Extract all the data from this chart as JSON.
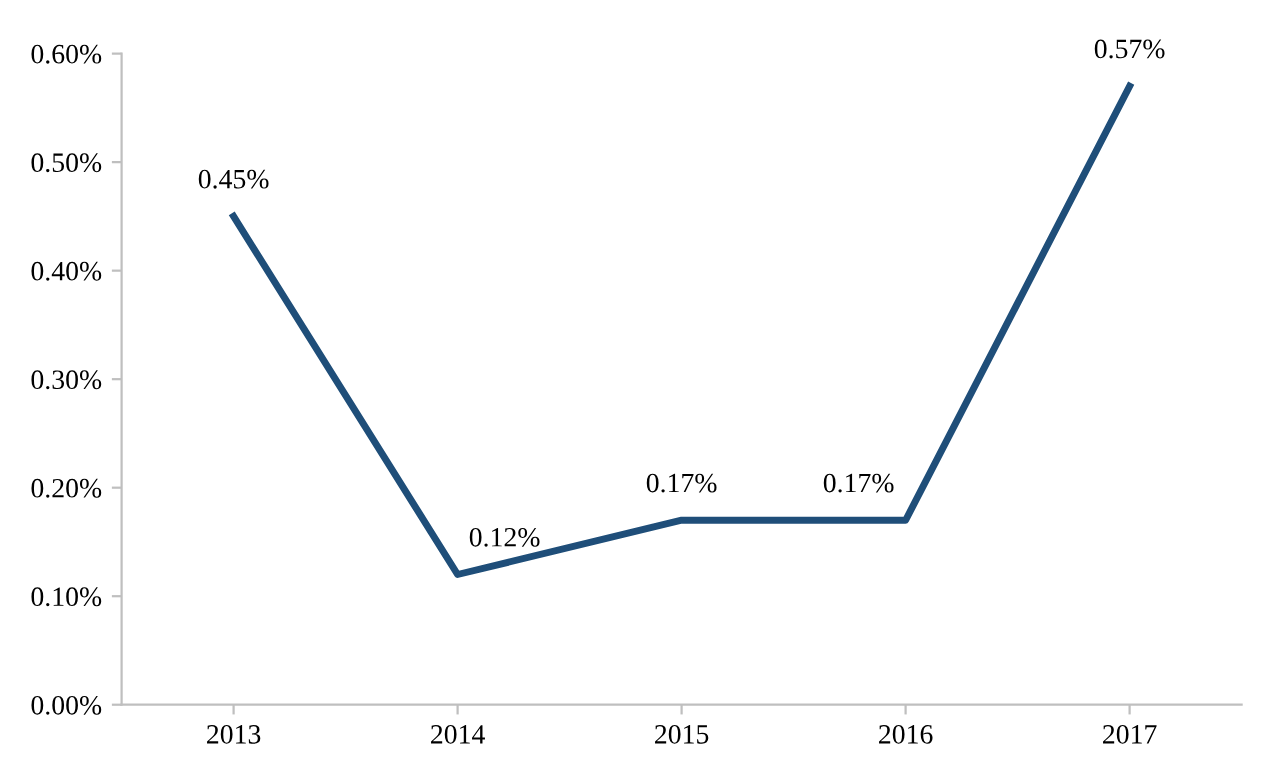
{
  "chart_data": {
    "type": "line",
    "categories": [
      "2013",
      "2014",
      "2015",
      "2016",
      "2017"
    ],
    "series": [
      {
        "color": "#1f4e79",
        "values": [
          0.45,
          0.12,
          0.17,
          0.17,
          0.57
        ],
        "value_labels": [
          "0.45%",
          "0.12%",
          "0.17%",
          "0.17%",
          "0.57%"
        ]
      }
    ],
    "ylim": [
      0,
      0.6
    ],
    "yticks": [
      {
        "value": 0,
        "label": "0.00%"
      },
      {
        "value": 0.1,
        "label": "0.10%"
      },
      {
        "value": 0.2,
        "label": "0.20%"
      },
      {
        "value": 0.3,
        "label": "0.30%"
      },
      {
        "value": 0.4,
        "label": "0.40%"
      },
      {
        "value": 0.5,
        "label": "0.50%"
      },
      {
        "value": 0.6,
        "label": "0.60%"
      }
    ],
    "grid": false,
    "marker": "none",
    "line_style": "solid"
  }
}
